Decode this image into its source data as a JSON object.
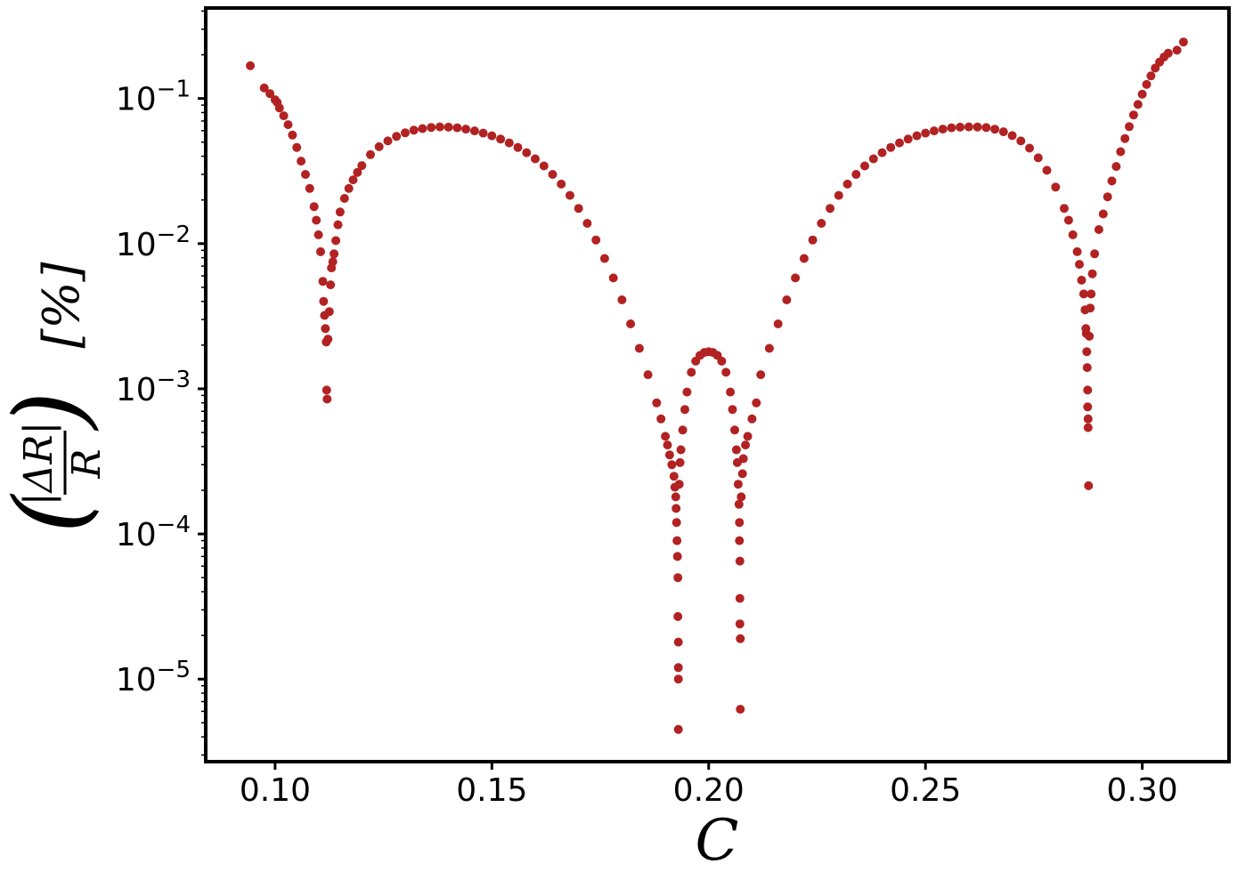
{
  "chart_data": {
    "type": "scatter",
    "xlabel": "C",
    "ylabel": "(|ΔR| / R) [%]",
    "ylabel_parts": {
      "numerator": "|ΔR|",
      "denominator": "R",
      "unit": "[%]"
    },
    "xscale": "linear",
    "yscale": "log",
    "xlim": [
      0.084,
      0.32
    ],
    "ylim": [
      2.7e-06,
      0.42
    ],
    "x_ticks": [
      {
        "value": 0.1,
        "label": "0.10"
      },
      {
        "value": 0.15,
        "label": "0.15"
      },
      {
        "value": 0.2,
        "label": "0.20"
      },
      {
        "value": 0.25,
        "label": "0.25"
      },
      {
        "value": 0.3,
        "label": "0.30"
      }
    ],
    "y_ticks": [
      {
        "value": 0.1,
        "base": "10",
        "exp": "−1"
      },
      {
        "value": 0.01,
        "base": "10",
        "exp": "−2"
      },
      {
        "value": 0.001,
        "base": "10",
        "exp": "−3"
      },
      {
        "value": 0.0001,
        "base": "10",
        "exp": "−4"
      },
      {
        "value": 1e-05,
        "base": "10",
        "exp": "−5"
      }
    ],
    "grid": false,
    "legend": "none",
    "marker_color": "#b22222",
    "series": [
      {
        "points": [
          [
            0.0943,
            0.168
          ],
          [
            0.0975,
            0.118
          ],
          [
            0.0988,
            0.108
          ],
          [
            0.1,
            0.098
          ],
          [
            0.1005,
            0.094
          ],
          [
            0.101,
            0.086
          ],
          [
            0.102,
            0.076
          ],
          [
            0.103,
            0.066
          ],
          [
            0.104,
            0.056
          ],
          [
            0.105,
            0.046
          ],
          [
            0.106,
            0.037
          ],
          [
            0.107,
            0.03
          ],
          [
            0.108,
            0.024
          ],
          [
            0.109,
            0.018
          ],
          [
            0.1095,
            0.0145
          ],
          [
            0.11,
            0.0115
          ],
          [
            0.1105,
            0.0088
          ],
          [
            0.111,
            0.0055
          ],
          [
            0.1112,
            0.004
          ],
          [
            0.1114,
            0.0032
          ],
          [
            0.1116,
            0.0026
          ],
          [
            0.1118,
            0.0021
          ],
          [
            0.1119,
            0.00098
          ],
          [
            0.112,
            0.00085
          ],
          [
            0.1122,
            0.0022
          ],
          [
            0.1125,
            0.0034
          ],
          [
            0.1128,
            0.0052
          ],
          [
            0.113,
            0.0068
          ],
          [
            0.1133,
            0.0075
          ],
          [
            0.1136,
            0.0085
          ],
          [
            0.114,
            0.0105
          ],
          [
            0.1145,
            0.0135
          ],
          [
            0.115,
            0.0165
          ],
          [
            0.116,
            0.0205
          ],
          [
            0.117,
            0.024
          ],
          [
            0.118,
            0.0275
          ],
          [
            0.119,
            0.031
          ],
          [
            0.12,
            0.0345
          ],
          [
            0.122,
            0.041
          ],
          [
            0.124,
            0.0465
          ],
          [
            0.126,
            0.051
          ],
          [
            0.128,
            0.0548
          ],
          [
            0.13,
            0.058
          ],
          [
            0.132,
            0.0605
          ],
          [
            0.134,
            0.062
          ],
          [
            0.136,
            0.0632
          ],
          [
            0.138,
            0.0637
          ],
          [
            0.14,
            0.0635
          ],
          [
            0.142,
            0.0628
          ],
          [
            0.144,
            0.0615
          ],
          [
            0.146,
            0.0598
          ],
          [
            0.148,
            0.0577
          ],
          [
            0.15,
            0.0553
          ],
          [
            0.152,
            0.0525
          ],
          [
            0.154,
            0.0494
          ],
          [
            0.156,
            0.046
          ],
          [
            0.158,
            0.0423
          ],
          [
            0.16,
            0.0384
          ],
          [
            0.162,
            0.0343
          ],
          [
            0.164,
            0.03
          ],
          [
            0.166,
            0.0257
          ],
          [
            0.168,
            0.0215
          ],
          [
            0.17,
            0.0175
          ],
          [
            0.172,
            0.0138
          ],
          [
            0.174,
            0.0106
          ],
          [
            0.176,
            0.0079
          ],
          [
            0.178,
            0.0058
          ],
          [
            0.18,
            0.0041
          ],
          [
            0.182,
            0.0028
          ],
          [
            0.184,
            0.0019
          ],
          [
            0.186,
            0.00125
          ],
          [
            0.188,
            0.0008
          ],
          [
            0.189,
            0.00062
          ],
          [
            0.19,
            0.00047
          ],
          [
            0.1905,
            0.00041
          ],
          [
            0.191,
            0.00035
          ],
          [
            0.1915,
            0.0003
          ],
          [
            0.192,
            0.00025
          ],
          [
            0.1922,
            0.00021
          ],
          [
            0.1924,
            0.00018
          ],
          [
            0.1925,
            0.00015
          ],
          [
            0.1926,
            0.00012
          ],
          [
            0.1927,
            9e-05
          ],
          [
            0.1928,
            7e-05
          ],
          [
            0.1929,
            5e-05
          ],
          [
            0.1929,
            2.7e-05
          ],
          [
            0.193,
            1.8e-05
          ],
          [
            0.193,
            1.2e-05
          ],
          [
            0.193,
            1e-05
          ],
          [
            0.193,
            4.5e-06
          ],
          [
            0.1932,
            0.00022
          ],
          [
            0.1934,
            0.00031
          ],
          [
            0.1936,
            0.00038
          ],
          [
            0.194,
            0.00052
          ],
          [
            0.1945,
            0.00072
          ],
          [
            0.195,
            0.00095
          ],
          [
            0.196,
            0.0013
          ],
          [
            0.197,
            0.00155
          ],
          [
            0.198,
            0.0017
          ],
          [
            0.199,
            0.00178
          ],
          [
            0.2,
            0.0018
          ],
          [
            0.201,
            0.00178
          ],
          [
            0.202,
            0.0017
          ],
          [
            0.203,
            0.00155
          ],
          [
            0.204,
            0.0013
          ],
          [
            0.205,
            0.00095
          ],
          [
            0.2055,
            0.00072
          ],
          [
            0.206,
            0.00052
          ],
          [
            0.2064,
            0.00038
          ],
          [
            0.2066,
            0.00031
          ],
          [
            0.2068,
            0.00022
          ],
          [
            0.207,
            0.00016
          ],
          [
            0.2071,
            0.00012
          ],
          [
            0.2071,
            9e-05
          ],
          [
            0.2072,
            6.5e-05
          ],
          [
            0.2072,
            3.6e-05
          ],
          [
            0.2072,
            2.4e-05
          ],
          [
            0.2073,
            1.9e-05
          ],
          [
            0.2073,
            6.2e-06
          ],
          [
            0.2075,
            0.00018
          ],
          [
            0.2078,
            0.00026
          ],
          [
            0.208,
            0.00033
          ],
          [
            0.2085,
            0.00041
          ],
          [
            0.209,
            0.00047
          ],
          [
            0.21,
            0.00062
          ],
          [
            0.211,
            0.0008
          ],
          [
            0.212,
            0.00125
          ],
          [
            0.214,
            0.0019
          ],
          [
            0.216,
            0.0028
          ],
          [
            0.218,
            0.0041
          ],
          [
            0.22,
            0.0058
          ],
          [
            0.222,
            0.0079
          ],
          [
            0.224,
            0.0106
          ],
          [
            0.226,
            0.0138
          ],
          [
            0.228,
            0.0175
          ],
          [
            0.23,
            0.0215
          ],
          [
            0.232,
            0.0257
          ],
          [
            0.234,
            0.03
          ],
          [
            0.236,
            0.0343
          ],
          [
            0.238,
            0.0384
          ],
          [
            0.24,
            0.0423
          ],
          [
            0.242,
            0.046
          ],
          [
            0.244,
            0.0494
          ],
          [
            0.246,
            0.0525
          ],
          [
            0.248,
            0.0553
          ],
          [
            0.25,
            0.0577
          ],
          [
            0.252,
            0.0598
          ],
          [
            0.254,
            0.0615
          ],
          [
            0.256,
            0.0628
          ],
          [
            0.258,
            0.0635
          ],
          [
            0.26,
            0.0637
          ],
          [
            0.262,
            0.0636
          ],
          [
            0.264,
            0.063
          ],
          [
            0.266,
            0.0614
          ],
          [
            0.268,
            0.059
          ],
          [
            0.27,
            0.0555
          ],
          [
            0.272,
            0.051
          ],
          [
            0.274,
            0.0455
          ],
          [
            0.276,
            0.039
          ],
          [
            0.278,
            0.032
          ],
          [
            0.28,
            0.0245
          ],
          [
            0.282,
            0.0175
          ],
          [
            0.283,
            0.0145
          ],
          [
            0.284,
            0.0115
          ],
          [
            0.285,
            0.0088
          ],
          [
            0.2855,
            0.0072
          ],
          [
            0.286,
            0.0056
          ],
          [
            0.2865,
            0.0045
          ],
          [
            0.2868,
            0.0035
          ],
          [
            0.287,
            0.0026
          ],
          [
            0.2871,
            0.0024
          ],
          [
            0.2872,
            0.0018
          ],
          [
            0.2873,
            0.0014
          ],
          [
            0.2874,
            0.00098
          ],
          [
            0.2874,
            0.00075
          ],
          [
            0.2875,
            0.00062
          ],
          [
            0.2875,
            0.00054
          ],
          [
            0.2876,
            0.000215
          ],
          [
            0.2878,
            0.0023
          ],
          [
            0.288,
            0.0036
          ],
          [
            0.2882,
            0.0045
          ],
          [
            0.2885,
            0.0062
          ],
          [
            0.289,
            0.0085
          ],
          [
            0.29,
            0.0125
          ],
          [
            0.291,
            0.016
          ],
          [
            0.292,
            0.021
          ],
          [
            0.293,
            0.027
          ],
          [
            0.294,
            0.034
          ],
          [
            0.295,
            0.043
          ],
          [
            0.296,
            0.053
          ],
          [
            0.297,
            0.064
          ],
          [
            0.298,
            0.077
          ],
          [
            0.299,
            0.091
          ],
          [
            0.3,
            0.107
          ],
          [
            0.301,
            0.125
          ],
          [
            0.302,
            0.143
          ],
          [
            0.303,
            0.162
          ],
          [
            0.304,
            0.178
          ],
          [
            0.305,
            0.193
          ],
          [
            0.306,
            0.205
          ],
          [
            0.308,
            0.215
          ],
          [
            0.3095,
            0.245
          ]
        ]
      }
    ]
  }
}
